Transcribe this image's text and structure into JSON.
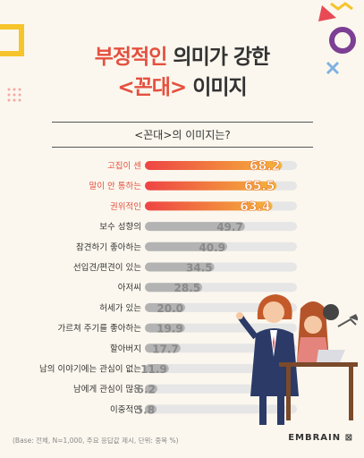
{
  "title": {
    "line1_pre": "부정적인",
    "line1_post": " 의미가 강한",
    "line2_pre": "<꼰대>",
    "line2_post": " 이미지"
  },
  "subheading": "<꼰대>의 이미지는?",
  "footer_note": "(Base: 전체, N=1,000, 주요 응답값 제시, 단위: 중복 %)",
  "brand": "EMBRAIN",
  "colors": {
    "highlight_bar": "#ee4444",
    "highlight_bar_end": "#f5b53a",
    "gray_bar": "#b3b3b3",
    "highlight_label": "#e5503f",
    "track": "#e6e6e6"
  },
  "chart_data": {
    "type": "bar",
    "orientation": "horizontal",
    "title": "<꼰대>의 이미지는?",
    "categories": [
      "고집이 센",
      "말이 안 통하는",
      "권위적인",
      "보수 성향의",
      "참견하기 좋아하는",
      "선입견/편견이 있는",
      "아저씨",
      "허세가 있는",
      "가르쳐 주기를 좋아하는",
      "할아버지",
      "남의 이야기에는 관심이 없는",
      "남에게 관심이 많은",
      "이중적인"
    ],
    "values": [
      68.2,
      65.5,
      63.4,
      49.7,
      40.9,
      34.5,
      28.5,
      20.0,
      19.9,
      17.7,
      11.9,
      6.2,
      5.8
    ],
    "value_labels": [
      "68.2",
      "65.5",
      "63.4",
      "49.7",
      "40.9",
      "34.5",
      "28.5",
      "20.0",
      "19.9",
      "17.7",
      "11.9",
      "6.2",
      "5.8"
    ],
    "highlighted": [
      true,
      true,
      true,
      false,
      false,
      false,
      false,
      false,
      false,
      false,
      false,
      false,
      false
    ],
    "unit": "%",
    "xlim": [
      0,
      100
    ]
  }
}
